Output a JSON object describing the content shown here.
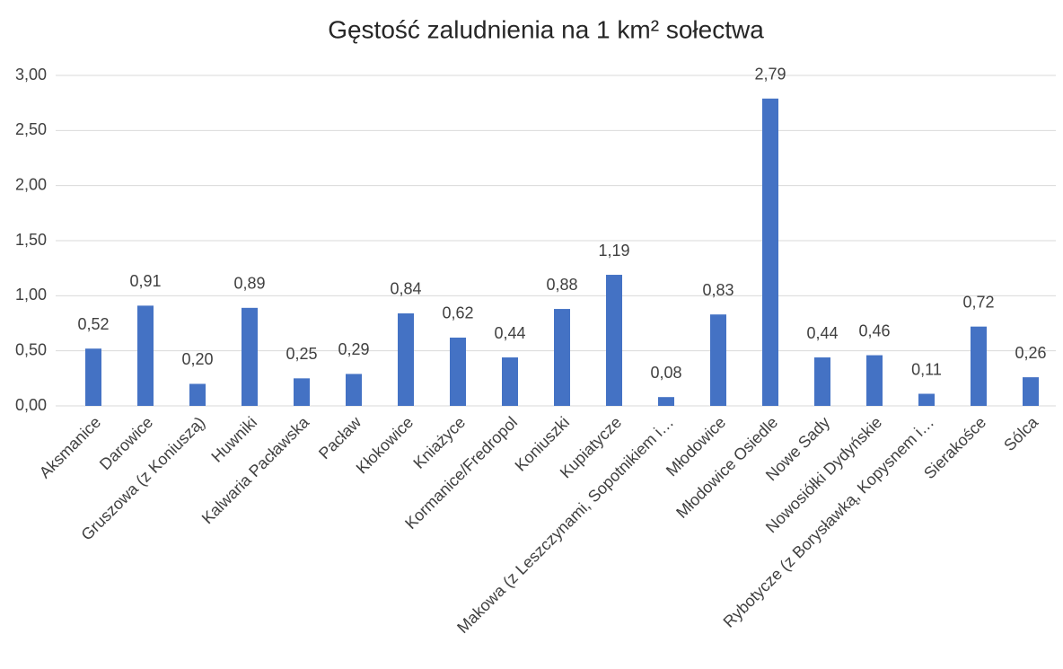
{
  "chart_data": {
    "type": "bar",
    "title": "Gęstość zaludnienia na 1 km² sołectwa",
    "categories": [
      "Aksmanice",
      "Darowice",
      "Gruszowa  (z Koniuszą)",
      "Huwniki",
      "Kalwaria Pacławska",
      "Pacław",
      "Kłokowice",
      "Kniażyce",
      "Kormanice/Fredropol",
      "Koniuszki",
      "Kupiatycze",
      "Makowa (z Leszczynami, Sopotnikiem i…",
      "Młodowice",
      "Młodowice Osiedle",
      "Nowe Sady",
      "Nowosiółki Dydyńskie",
      "Rybotycze (z Borysławką, Kopysnem i…",
      "Sierakośce",
      "Sólca"
    ],
    "values": [
      0.52,
      0.91,
      0.2,
      0.89,
      0.25,
      0.29,
      0.84,
      0.62,
      0.44,
      0.88,
      1.19,
      0.08,
      0.83,
      2.79,
      0.44,
      0.46,
      0.11,
      0.72,
      0.26
    ],
    "value_labels": [
      "0,52",
      "0,91",
      "0,20",
      "0,89",
      "0,25",
      "0,29",
      "0,84",
      "0,62",
      "0,44",
      "0,88",
      "1,19",
      "0,08",
      "0,83",
      "2,79",
      "0,44",
      "0,46",
      "0,11",
      "0,72",
      "0,26"
    ],
    "color": "#4472c4",
    "ylim": [
      0,
      3
    ],
    "yticks": [
      {
        "value": 0,
        "label": "0,00"
      },
      {
        "value": 0.5,
        "label": "0,50"
      },
      {
        "value": 1,
        "label": "1,00"
      },
      {
        "value": 1.5,
        "label": "1,50"
      },
      {
        "value": 2,
        "label": "2,00"
      },
      {
        "value": 2.5,
        "label": "2,50"
      },
      {
        "value": 3,
        "label": "3,00"
      }
    ],
    "grid": true
  }
}
